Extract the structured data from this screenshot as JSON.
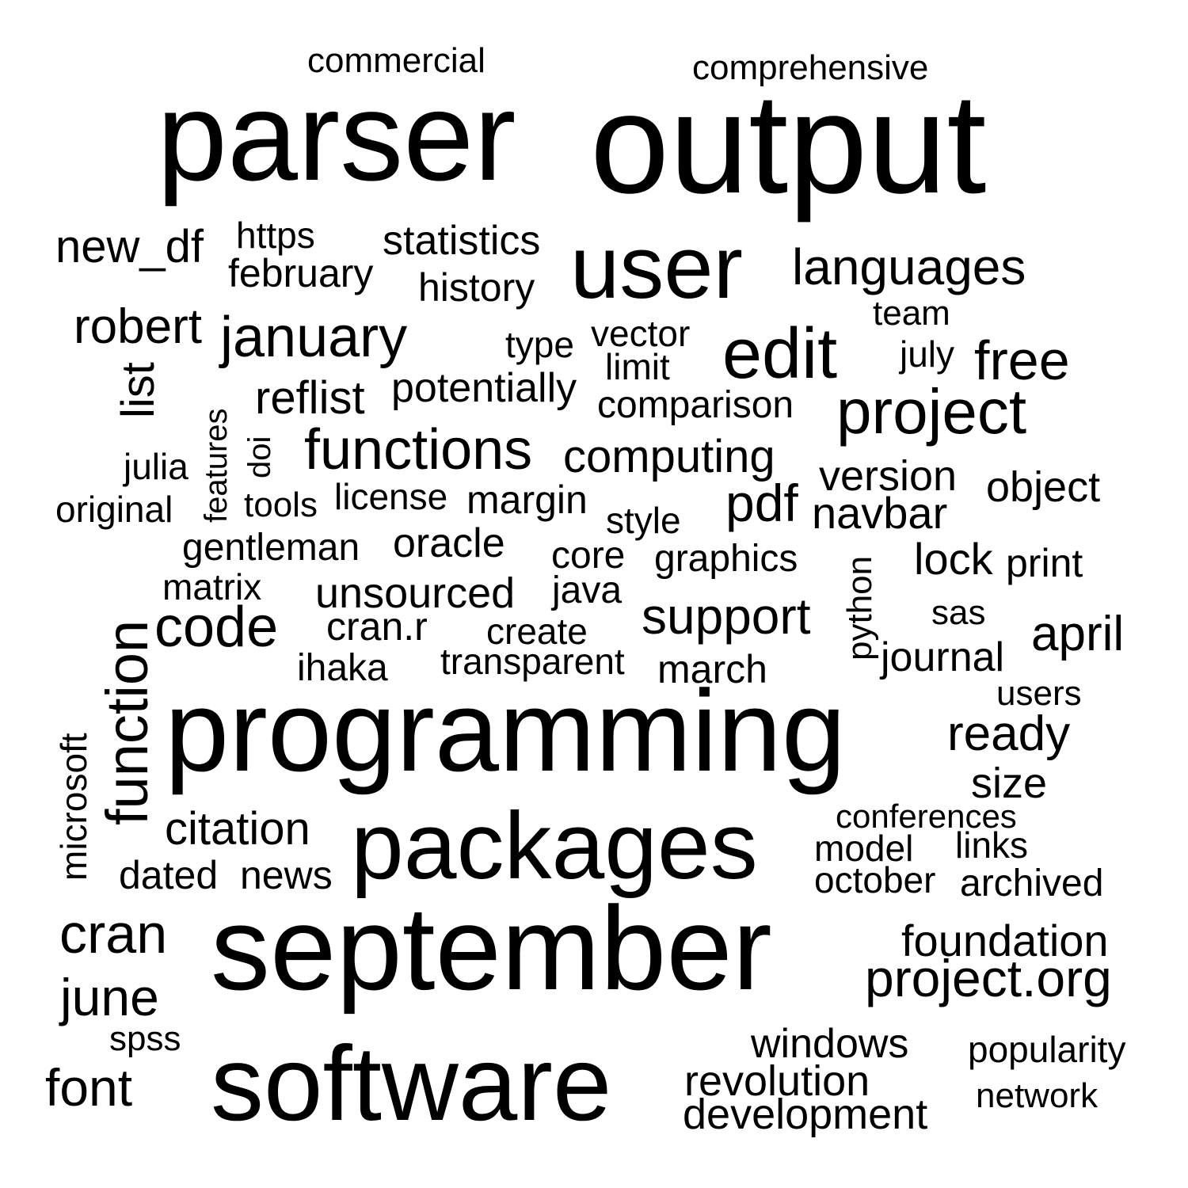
{
  "text_color": "#000000",
  "background_color": "#ffffff",
  "words": {
    "commercial": "commercial",
    "comprehensive": "comprehensive",
    "parser": "parser",
    "output": "output",
    "new_df": "new_df",
    "https": "https",
    "statistics": "statistics",
    "february": "february",
    "history": "history",
    "user": "user",
    "languages": "languages",
    "team": "team",
    "robert": "robert",
    "january": "january",
    "type": "type",
    "vector": "vector",
    "edit": "edit",
    "july": "july",
    "free": "free",
    "limit": "limit",
    "list": "list",
    "features": "features",
    "reflist": "reflist",
    "potentially": "potentially",
    "comparison": "comparison",
    "project": "project",
    "doi": "doi",
    "functions": "functions",
    "computing": "computing",
    "julia": "julia",
    "version": "version",
    "object": "object",
    "original": "original",
    "tools": "tools",
    "license": "license",
    "margin": "margin",
    "pdf": "pdf",
    "navbar": "navbar",
    "style": "style",
    "gentleman": "gentleman",
    "oracle": "oracle",
    "core": "core",
    "graphics": "graphics",
    "python": "python",
    "lock": "lock",
    "print": "print",
    "matrix": "matrix",
    "function": "function",
    "unsourced": "unsourced",
    "java": "java",
    "support": "support",
    "sas": "sas",
    "code": "code",
    "cran_r": "cran.r",
    "create": "create",
    "april": "april",
    "journal": "journal",
    "ihaka": "ihaka",
    "transparent": "transparent",
    "march": "march",
    "users": "users",
    "microsoft": "microsoft",
    "programming": "programming",
    "ready": "ready",
    "size": "size",
    "citation": "citation",
    "packages": "packages",
    "conferences": "conferences",
    "model": "model",
    "links": "links",
    "dated": "dated",
    "news": "news",
    "october": "october",
    "archived": "archived",
    "cran": "cran",
    "september": "september",
    "foundation": "foundation",
    "project_org": "project.org",
    "june": "june",
    "spss": "spss",
    "windows": "windows",
    "popularity": "popularity",
    "font": "font",
    "software": "software",
    "revolution": "revolution",
    "network": "network",
    "development": "development"
  }
}
